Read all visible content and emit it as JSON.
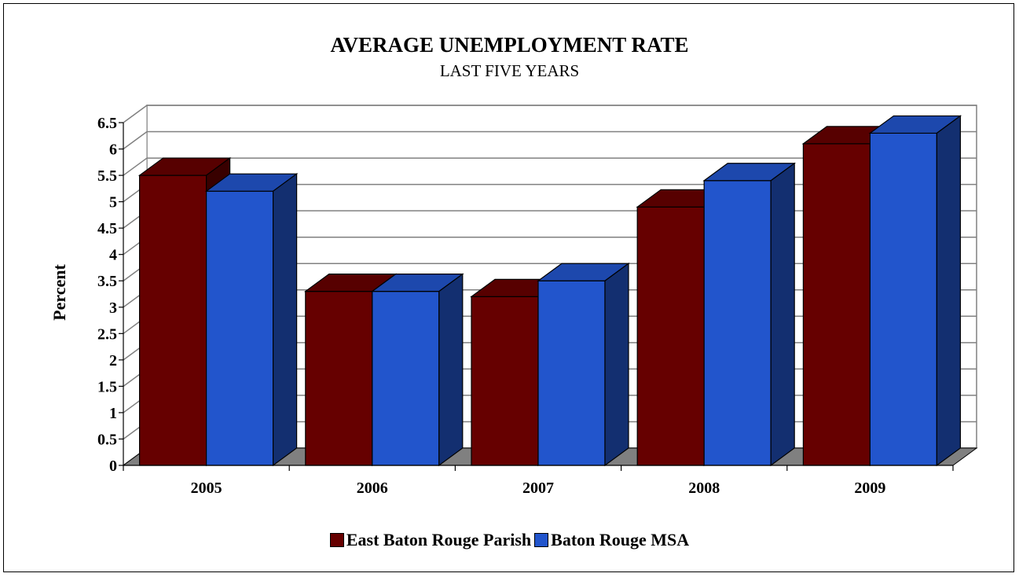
{
  "chart_data": {
    "type": "bar",
    "title": "AVERAGE UNEMPLOYMENT RATE",
    "subtitle": "LAST FIVE YEARS",
    "ylabel": "Percent",
    "xlabel": "",
    "categories": [
      "2005",
      "2006",
      "2007",
      "2008",
      "2009"
    ],
    "series": [
      {
        "name": "East Baton Rouge Parish",
        "values": [
          5.5,
          3.3,
          3.2,
          4.9,
          6.1
        ],
        "color": "#660000"
      },
      {
        "name": "Baton Rouge MSA",
        "values": [
          5.2,
          3.3,
          3.5,
          5.4,
          6.3
        ],
        "color": "#2255cc"
      }
    ],
    "ylim": [
      0,
      6.5
    ],
    "yticks": [
      "0",
      "0.5",
      "1",
      "1.5",
      "2",
      "2.5",
      "3",
      "3.5",
      "4",
      "4.5",
      "5",
      "5.5",
      "6",
      "6.5"
    ],
    "grid": true,
    "legend_position": "bottom"
  }
}
